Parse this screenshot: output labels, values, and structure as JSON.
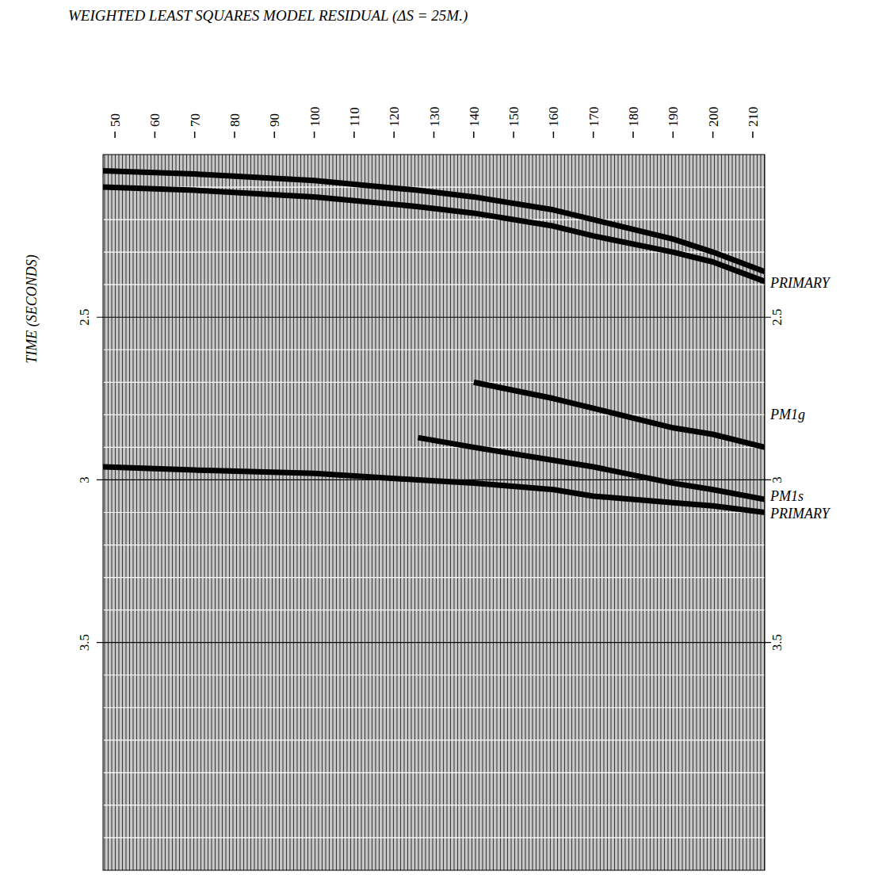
{
  "chart_data": {
    "type": "line",
    "title": "WEIGHTED LEAST SQUARES MODEL RESIDUAL   (ΔS = 25M.)",
    "y_label": "TIME (SECONDS)",
    "x": [
      47,
      70,
      100,
      126,
      140,
      160,
      170,
      190,
      200,
      213
    ],
    "series": [
      {
        "color": "#000000",
        "values": [
          2.05,
          2.06,
          2.08,
          2.11,
          2.13,
          2.17,
          2.2,
          2.26,
          2.3,
          2.36
        ]
      },
      {
        "color": "#000000",
        "values": [
          2.1,
          2.11,
          2.13,
          2.16,
          2.18,
          2.22,
          2.25,
          2.3,
          2.33,
          2.39
        ]
      },
      {
        "color": "#000000",
        "values": [
          null,
          null,
          null,
          null,
          2.7,
          2.75,
          2.78,
          2.84,
          2.86,
          2.9
        ]
      },
      {
        "color": "#000000",
        "values": [
          null,
          null,
          null,
          2.87,
          2.9,
          2.94,
          2.96,
          3.01,
          3.03,
          3.06
        ]
      },
      {
        "color": "#000000",
        "values": [
          2.96,
          2.97,
          2.98,
          3.0,
          3.01,
          3.03,
          3.05,
          3.07,
          3.08,
          3.1
        ]
      }
    ],
    "annotations": [
      {
        "text": "PRIMARY",
        "y": 2.395
      },
      {
        "text": "PM1g",
        "y": 2.798
      },
      {
        "text": "PM1s",
        "y": 3.051
      },
      {
        "text": "PRIMARY",
        "y": 3.104
      }
    ],
    "xlim": [
      47,
      213
    ],
    "xticks": [
      50,
      60,
      70,
      80,
      90,
      100,
      110,
      120,
      130,
      140,
      150,
      160,
      170,
      180,
      190,
      200,
      210
    ],
    "ylim": [
      2.0,
      4.2
    ],
    "yticks": [
      2.5,
      3,
      3.5
    ],
    "yticks_minor": [
      2.1,
      2.2,
      2.3,
      2.4,
      2.6,
      2.7,
      2.8,
      2.9,
      3.1,
      3.2,
      3.3,
      3.4,
      3.6,
      3.7,
      3.8,
      3.9,
      4.0,
      4.1
    ],
    "grid": true
  }
}
